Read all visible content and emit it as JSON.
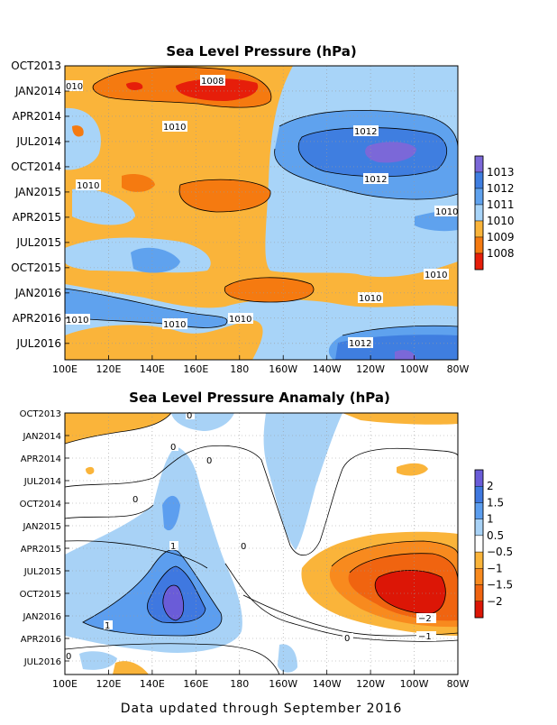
{
  "chart_data": [
    {
      "type": "heatmap",
      "title": "Sea Level Pressure (hPa)",
      "x_ticks": [
        "100E",
        "120E",
        "140E",
        "160E",
        "180",
        "160W",
        "140W",
        "120W",
        "100W",
        "80W"
      ],
      "y_ticks": [
        "OCT2013",
        "JAN2014",
        "APR2014",
        "JUL2014",
        "OCT2014",
        "JAN2015",
        "APR2015",
        "JUL2015",
        "OCT2015",
        "JAN2016",
        "APR2016",
        "JUL2016"
      ],
      "legend_levels": [
        "1013",
        "1012",
        "1011",
        "1010",
        "1009",
        "1008"
      ],
      "legend_colors": [
        "#7b68d8",
        "#3f7ee0",
        "#5fa2ee",
        "#a8d4f8",
        "#fab43a",
        "#f57a10",
        "#e61e0a"
      ],
      "contour_labels": [
        "010",
        "1008",
        "1010",
        "1012",
        "1012",
        "1010",
        "1010",
        "1010",
        "1010",
        "1010",
        "1010",
        "1010",
        "1012"
      ],
      "grid": true
    },
    {
      "type": "heatmap",
      "title": "Sea Level Pressure Anamaly (hPa)",
      "x_ticks": [
        "100E",
        "120E",
        "140E",
        "160E",
        "180",
        "160W",
        "140W",
        "120W",
        "100W",
        "80W"
      ],
      "y_ticks": [
        "OCT2013",
        "JAN2014",
        "APR2014",
        "JUL2014",
        "OCT2014",
        "JAN2015",
        "APR2015",
        "JUL2015",
        "OCT2015",
        "JAN2016",
        "APR2016",
        "JUL2016"
      ],
      "legend_levels": [
        "2",
        "1.5",
        "1",
        "0.5",
        "−0.5",
        "−1",
        "−1.5",
        "−2"
      ],
      "legend_colors": [
        "#6a5cd8",
        "#3f78e0",
        "#5c9eef",
        "#a8d2f6",
        "#ffffff",
        "#fab43a",
        "#f88a1e",
        "#f06410",
        "#dc1606"
      ],
      "contour_labels": [
        "0",
        "0",
        "0",
        "0",
        "1",
        "1",
        "0",
        "−2",
        "−1",
        "0",
        "0"
      ],
      "grid": true
    }
  ],
  "footer": "Data updated through September 2016"
}
